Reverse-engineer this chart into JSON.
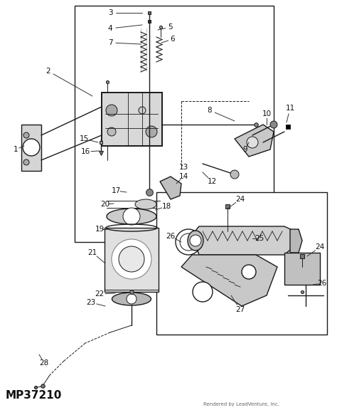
{
  "bg_color": "#ffffff",
  "fig_width": 4.74,
  "fig_height": 5.76,
  "dpi": 100,
  "part_number": "MP37210",
  "rendered_by": "Rendered by LeadVenture, Inc.",
  "line_color": "#1a1a1a",
  "label_color": "#111111",
  "label_fontsize": 7.5,
  "gray_part": "#c8c8c8",
  "dark_gray": "#555555",
  "light_gray": "#e0e0e0"
}
